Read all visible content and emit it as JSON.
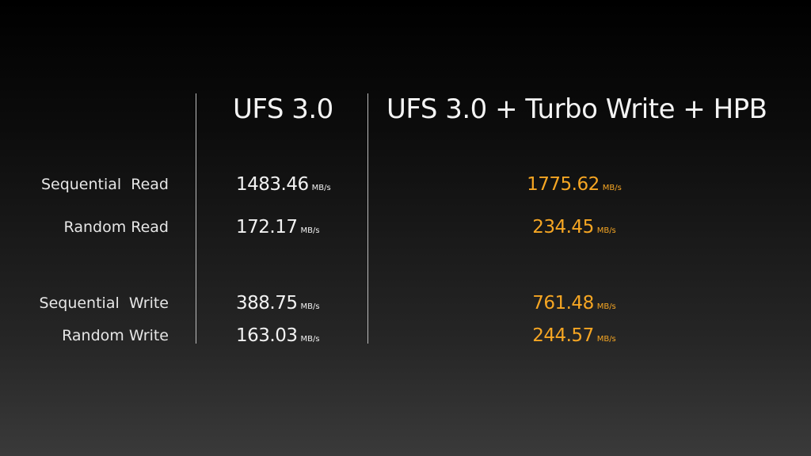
{
  "table": {
    "columns": [
      "UFS 3.0",
      "UFS 3.0 + Turbo Write + HPB"
    ],
    "rows": [
      {
        "label": "Sequential  Read",
        "values": [
          {
            "value": "1483.46",
            "unit": "MB/s"
          },
          {
            "value": "1775.62",
            "unit": "MB/s"
          }
        ]
      },
      {
        "label": "Random Read",
        "values": [
          {
            "value": "172.17",
            "unit": "MB/s"
          },
          {
            "value": "234.45",
            "unit": "MB/s"
          }
        ]
      },
      {
        "label": "Sequential  Write",
        "values": [
          {
            "value": "388.75",
            "unit": "MB/s"
          },
          {
            "value": "761.48",
            "unit": "MB/s"
          }
        ]
      },
      {
        "label": "Random Write",
        "values": [
          {
            "value": "163.03",
            "unit": "MB/s"
          },
          {
            "value": "244.57",
            "unit": "MB/s"
          }
        ]
      }
    ]
  }
}
